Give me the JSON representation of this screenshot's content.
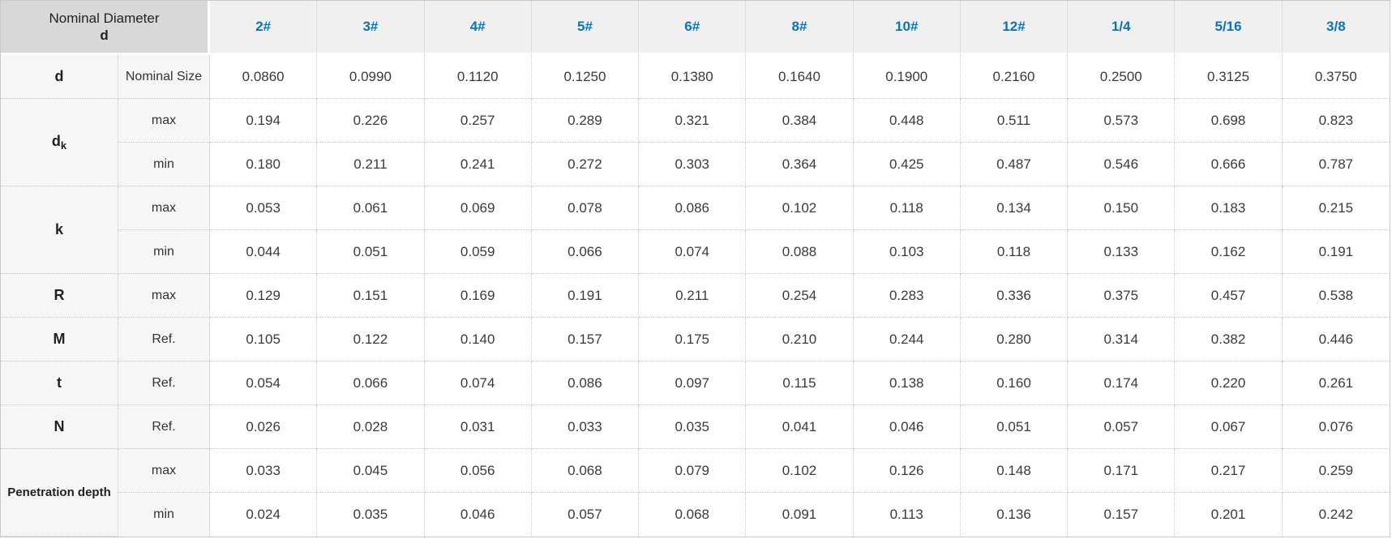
{
  "table": {
    "corner": {
      "line1": "Nominal Diameter",
      "line2": "d"
    },
    "columns": [
      "2#",
      "3#",
      "4#",
      "5#",
      "6#",
      "8#",
      "10#",
      "12#",
      "1/4",
      "5/16",
      "3/8"
    ],
    "groups": [
      {
        "label": "d",
        "sub": "",
        "rows": [
          {
            "qualifier": "Nominal Size",
            "values": [
              "0.0860",
              "0.0990",
              "0.1120",
              "0.1250",
              "0.1380",
              "0.1640",
              "0.1900",
              "0.2160",
              "0.2500",
              "0.3125",
              "0.3750"
            ]
          }
        ]
      },
      {
        "label": "d",
        "sub": "k",
        "rows": [
          {
            "qualifier": "max",
            "values": [
              "0.194",
              "0.226",
              "0.257",
              "0.289",
              "0.321",
              "0.384",
              "0.448",
              "0.511",
              "0.573",
              "0.698",
              "0.823"
            ]
          },
          {
            "qualifier": "min",
            "values": [
              "0.180",
              "0.211",
              "0.241",
              "0.272",
              "0.303",
              "0.364",
              "0.425",
              "0.487",
              "0.546",
              "0.666",
              "0.787"
            ]
          }
        ]
      },
      {
        "label": "k",
        "sub": "",
        "rows": [
          {
            "qualifier": "max",
            "values": [
              "0.053",
              "0.061",
              "0.069",
              "0.078",
              "0.086",
              "0.102",
              "0.118",
              "0.134",
              "0.150",
              "0.183",
              "0.215"
            ]
          },
          {
            "qualifier": "min",
            "values": [
              "0.044",
              "0.051",
              "0.059",
              "0.066",
              "0.074",
              "0.088",
              "0.103",
              "0.118",
              "0.133",
              "0.162",
              "0.191"
            ]
          }
        ]
      },
      {
        "label": "R",
        "sub": "",
        "rows": [
          {
            "qualifier": "max",
            "values": [
              "0.129",
              "0.151",
              "0.169",
              "0.191",
              "0.211",
              "0.254",
              "0.283",
              "0.336",
              "0.375",
              "0.457",
              "0.538"
            ]
          }
        ]
      },
      {
        "label": "M",
        "sub": "",
        "rows": [
          {
            "qualifier": "Ref.",
            "values": [
              "0.105",
              "0.122",
              "0.140",
              "0.157",
              "0.175",
              "0.210",
              "0.244",
              "0.280",
              "0.314",
              "0.382",
              "0.446"
            ]
          }
        ]
      },
      {
        "label": "t",
        "sub": "",
        "rows": [
          {
            "qualifier": "Ref.",
            "values": [
              "0.054",
              "0.066",
              "0.074",
              "0.086",
              "0.097",
              "0.115",
              "0.138",
              "0.160",
              "0.174",
              "0.220",
              "0.261"
            ]
          }
        ]
      },
      {
        "label": "N",
        "sub": "",
        "rows": [
          {
            "qualifier": "Ref.",
            "values": [
              "0.026",
              "0.028",
              "0.031",
              "0.033",
              "0.035",
              "0.041",
              "0.046",
              "0.051",
              "0.057",
              "0.067",
              "0.076"
            ]
          }
        ]
      },
      {
        "label": "Penetration depth",
        "sub": "",
        "rows": [
          {
            "qualifier": "max",
            "values": [
              "0.033",
              "0.045",
              "0.056",
              "0.068",
              "0.079",
              "0.102",
              "0.126",
              "0.148",
              "0.171",
              "0.217",
              "0.259"
            ]
          },
          {
            "qualifier": "min",
            "values": [
              "0.024",
              "0.035",
              "0.046",
              "0.057",
              "0.068",
              "0.091",
              "0.113",
              "0.136",
              "0.157",
              "0.201",
              "0.242"
            ]
          }
        ]
      }
    ]
  },
  "colors": {
    "accent_blue": "#0a73b9",
    "corner_bg": "#d8d8d8",
    "header_bg": "#f0f0f0",
    "label_bg": "#f6f6f6",
    "border_dotted": "#c6c6c6",
    "border_solid": "#c9c9c9"
  }
}
